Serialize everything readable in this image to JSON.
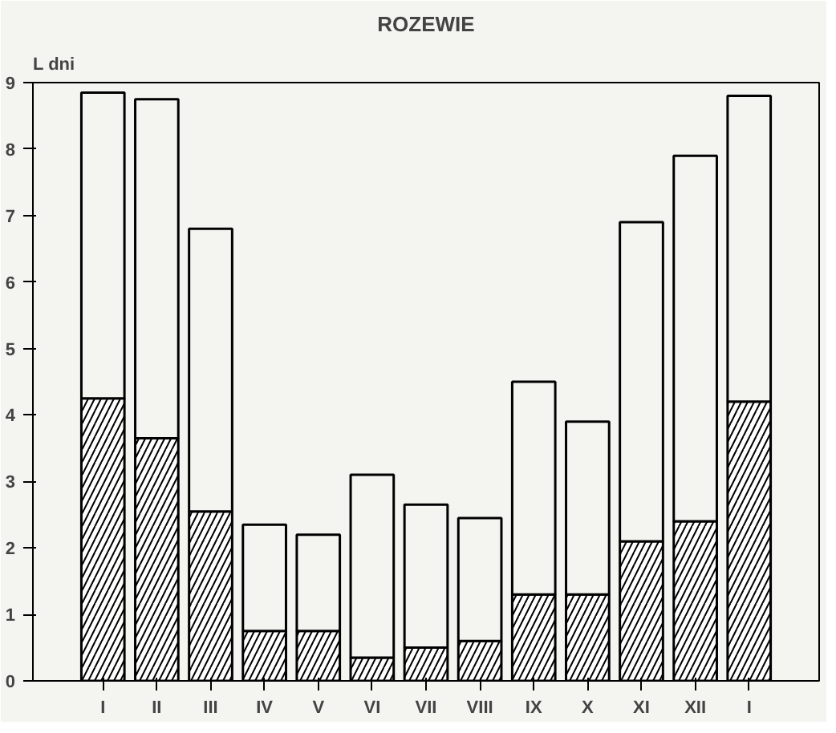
{
  "chart_data": {
    "type": "bar",
    "title": "ROZEWIE",
    "ylabel": "L dni",
    "stacked": true,
    "categories": [
      "I",
      "II",
      "III",
      "IV",
      "V",
      "VI",
      "VII",
      "VIII",
      "IX",
      "X",
      "XI",
      "XII",
      "I"
    ],
    "series": [
      {
        "color": "#ffffff",
        "values": [
          4.25,
          3.65,
          2.55,
          0.75,
          0.75,
          0.35,
          0.5,
          0.6,
          1.3,
          1.3,
          2.1,
          2.4,
          4.2
        ]
      },
      {
        "color": "#f4f4f0",
        "values": [
          4.6,
          5.1,
          4.25,
          1.6,
          1.45,
          2.75,
          2.15,
          1.85,
          3.2,
          2.6,
          4.8,
          5.5,
          4.6
        ]
      }
    ],
    "ylim": [
      0,
      9
    ],
    "yticks": [
      0,
      1,
      2,
      3,
      4,
      5,
      6,
      7,
      8,
      9
    ]
  }
}
